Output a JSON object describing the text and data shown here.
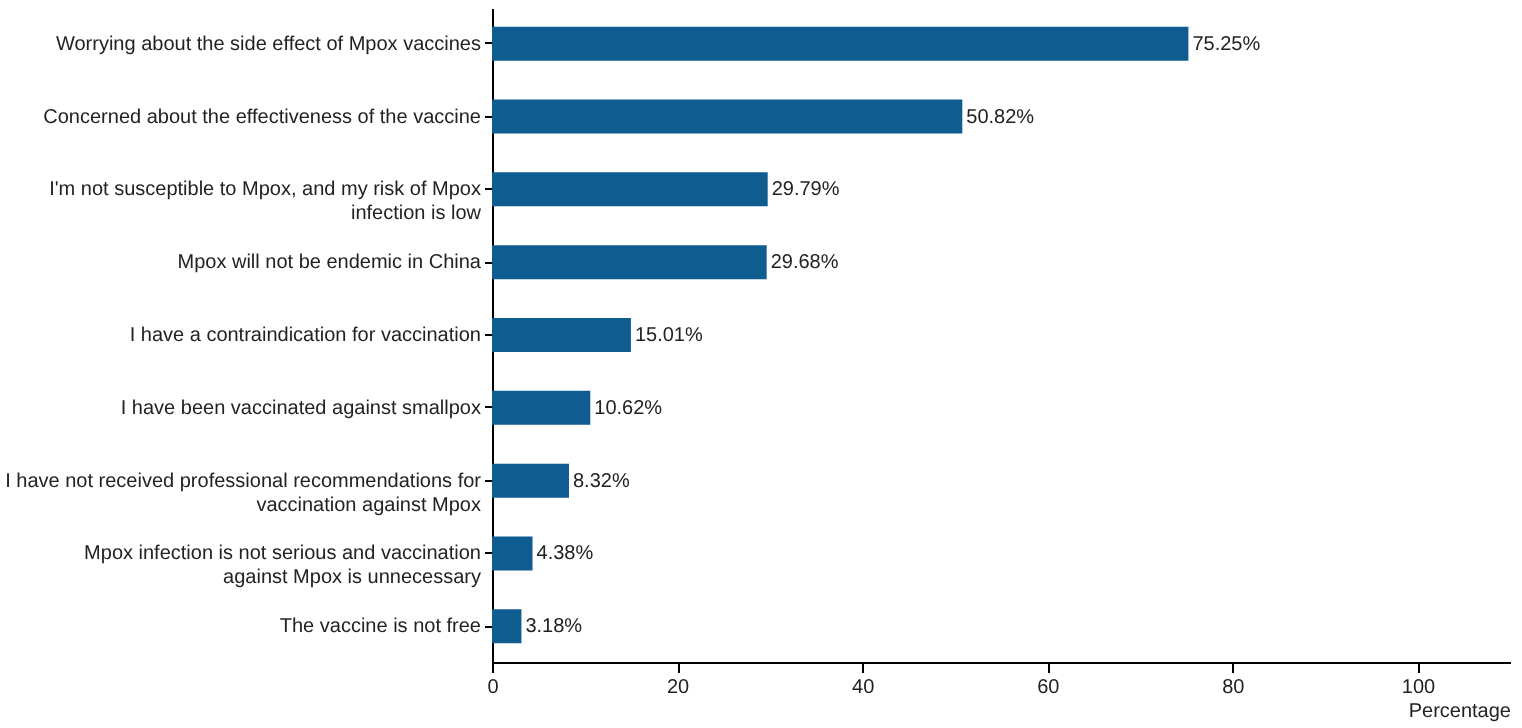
{
  "chart_data": {
    "type": "bar",
    "orientation": "horizontal",
    "xlabel": "Percentage",
    "categories": [
      "Worrying about the side effect of Mpox vaccines",
      "Concerned about the effectiveness of the vaccine",
      "I'm not susceptible to Mpox, and my risk of Mpox\ninfection is low",
      "Mpox will not be endemic in China",
      "I have a contraindication for vaccination",
      "I have been vaccinated against smallpox",
      "I have not received professional recommendations for\nvaccination against Mpox",
      "Mpox infection is not serious and vaccination\nagainst Mpox is unnecessary",
      "The vaccine is not free"
    ],
    "values": [
      75.25,
      50.82,
      29.79,
      29.68,
      15.01,
      10.62,
      8.32,
      4.38,
      3.18
    ],
    "value_labels": [
      "75.25%",
      "50.82%",
      "29.79%",
      "29.68%",
      "15.01%",
      "10.62%",
      "8.32%",
      "4.38%",
      "3.18%"
    ],
    "color": "#0f5c91",
    "xlim": [
      0,
      110
    ],
    "xticks": [
      0,
      20,
      40,
      60,
      80,
      100
    ],
    "grid": false
  }
}
